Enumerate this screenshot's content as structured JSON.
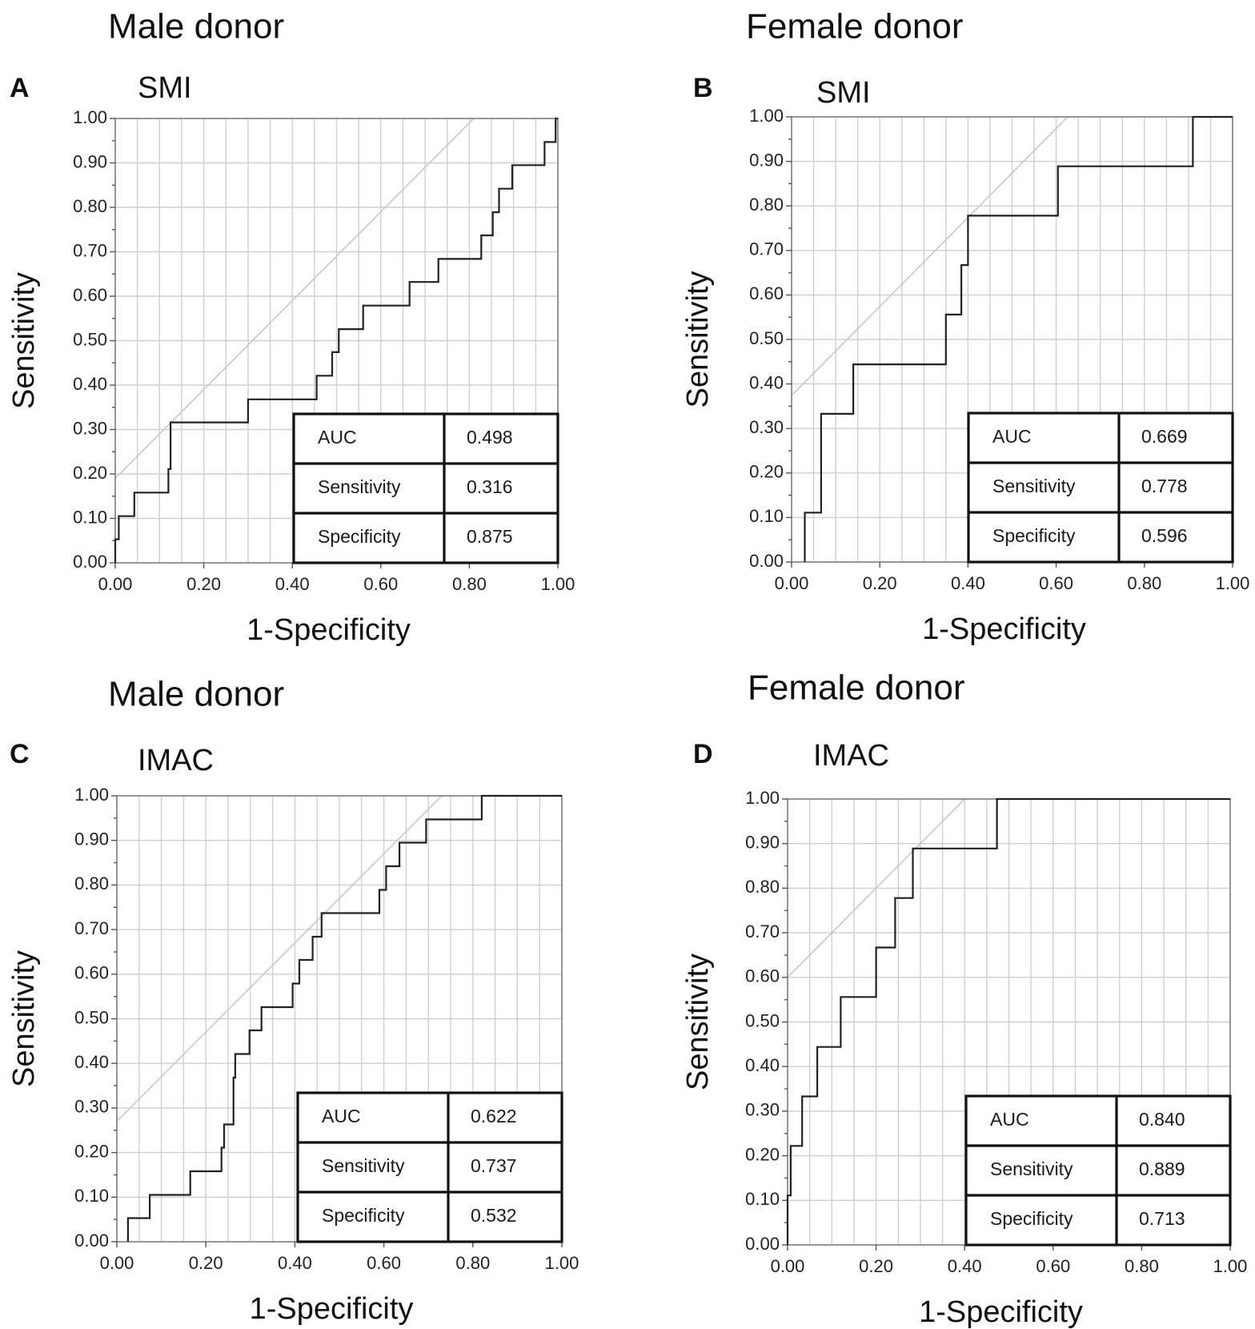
{
  "chart_data": [
    {
      "type": "line",
      "panel": "A",
      "group_title": "Male donor",
      "metric": "SMI",
      "xlabel": "1-Specificity",
      "ylabel": "Sensitivity",
      "xlim": [
        0,
        1
      ],
      "ylim": [
        0,
        1
      ],
      "xticks": [
        "0.00",
        "0.20",
        "0.40",
        "0.60",
        "0.80",
        "1.00"
      ],
      "yticks": [
        "0.00",
        "0.10",
        "0.20",
        "0.30",
        "0.40",
        "0.50",
        "0.60",
        "0.70",
        "0.80",
        "0.90",
        "1.00"
      ],
      "grid": true,
      "reference_line": {
        "intercept": 0.19,
        "slope": 1
      },
      "roc_points": [
        [
          0,
          0
        ],
        [
          0,
          0.053
        ],
        [
          0.008,
          0.053
        ],
        [
          0.008,
          0.105
        ],
        [
          0.043,
          0.105
        ],
        [
          0.043,
          0.158
        ],
        [
          0.12,
          0.158
        ],
        [
          0.12,
          0.211
        ],
        [
          0.125,
          0.211
        ],
        [
          0.125,
          0.316
        ],
        [
          0.3,
          0.316
        ],
        [
          0.3,
          0.368
        ],
        [
          0.455,
          0.368
        ],
        [
          0.455,
          0.421
        ],
        [
          0.49,
          0.421
        ],
        [
          0.49,
          0.474
        ],
        [
          0.505,
          0.474
        ],
        [
          0.505,
          0.526
        ],
        [
          0.56,
          0.526
        ],
        [
          0.56,
          0.579
        ],
        [
          0.665,
          0.579
        ],
        [
          0.665,
          0.632
        ],
        [
          0.73,
          0.632
        ],
        [
          0.73,
          0.684
        ],
        [
          0.827,
          0.684
        ],
        [
          0.827,
          0.737
        ],
        [
          0.853,
          0.737
        ],
        [
          0.853,
          0.789
        ],
        [
          0.867,
          0.789
        ],
        [
          0.867,
          0.842
        ],
        [
          0.897,
          0.842
        ],
        [
          0.897,
          0.895
        ],
        [
          0.97,
          0.895
        ],
        [
          0.97,
          0.947
        ],
        [
          0.995,
          0.947
        ],
        [
          0.995,
          1.0
        ],
        [
          1.0,
          1.0
        ]
      ],
      "table": [
        {
          "label": "AUC",
          "value": "0.498"
        },
        {
          "label": "Sensitivity",
          "value": "0.316"
        },
        {
          "label": "Specificity",
          "value": "0.875"
        }
      ]
    },
    {
      "type": "line",
      "panel": "B",
      "group_title": "Female donor",
      "metric": "SMI",
      "xlabel": "1-Specificity",
      "ylabel": "Sensitivity",
      "xlim": [
        0,
        1
      ],
      "ylim": [
        0,
        1
      ],
      "xticks": [
        "0.00",
        "0.20",
        "0.40",
        "0.60",
        "0.80",
        "1.00"
      ],
      "yticks": [
        "0.00",
        "0.10",
        "0.20",
        "0.30",
        "0.40",
        "0.50",
        "0.60",
        "0.70",
        "0.80",
        "0.90",
        "1.00"
      ],
      "grid": true,
      "reference_line": {
        "intercept": 0.374,
        "slope": 1
      },
      "roc_points": [
        [
          0.03,
          0
        ],
        [
          0.03,
          0.111
        ],
        [
          0.067,
          0.111
        ],
        [
          0.067,
          0.333
        ],
        [
          0.14,
          0.333
        ],
        [
          0.14,
          0.444
        ],
        [
          0.35,
          0.444
        ],
        [
          0.35,
          0.556
        ],
        [
          0.385,
          0.556
        ],
        [
          0.385,
          0.667
        ],
        [
          0.4,
          0.667
        ],
        [
          0.4,
          0.778
        ],
        [
          0.604,
          0.778
        ],
        [
          0.604,
          0.889
        ],
        [
          0.91,
          0.889
        ],
        [
          0.91,
          1.0
        ],
        [
          1.0,
          1.0
        ]
      ],
      "table": [
        {
          "label": "AUC",
          "value": "0.669"
        },
        {
          "label": "Sensitivity",
          "value": "0.778"
        },
        {
          "label": "Specificity",
          "value": "0.596"
        }
      ]
    },
    {
      "type": "line",
      "panel": "C",
      "group_title": "Male donor",
      "metric": "IMAC",
      "xlabel": "1-Specificity",
      "ylabel": "Sensitivity",
      "xlim": [
        0,
        1
      ],
      "ylim": [
        0,
        1
      ],
      "xticks": [
        "0.00",
        "0.20",
        "0.40",
        "0.60",
        "0.80",
        "1.00"
      ],
      "yticks": [
        "0.00",
        "0.10",
        "0.20",
        "0.30",
        "0.40",
        "0.50",
        "0.60",
        "0.70",
        "0.80",
        "0.90",
        "1.00"
      ],
      "grid": true,
      "reference_line": {
        "intercept": 0.27,
        "slope": 1
      },
      "roc_points": [
        [
          0.025,
          0
        ],
        [
          0.025,
          0.053
        ],
        [
          0.074,
          0.053
        ],
        [
          0.074,
          0.105
        ],
        [
          0.165,
          0.105
        ],
        [
          0.165,
          0.158
        ],
        [
          0.235,
          0.158
        ],
        [
          0.235,
          0.211
        ],
        [
          0.241,
          0.211
        ],
        [
          0.241,
          0.263
        ],
        [
          0.262,
          0.263
        ],
        [
          0.262,
          0.368
        ],
        [
          0.266,
          0.368
        ],
        [
          0.266,
          0.421
        ],
        [
          0.298,
          0.421
        ],
        [
          0.298,
          0.474
        ],
        [
          0.325,
          0.474
        ],
        [
          0.325,
          0.526
        ],
        [
          0.395,
          0.526
        ],
        [
          0.395,
          0.579
        ],
        [
          0.41,
          0.579
        ],
        [
          0.41,
          0.632
        ],
        [
          0.44,
          0.632
        ],
        [
          0.44,
          0.684
        ],
        [
          0.46,
          0.684
        ],
        [
          0.46,
          0.737
        ],
        [
          0.59,
          0.737
        ],
        [
          0.59,
          0.789
        ],
        [
          0.605,
          0.789
        ],
        [
          0.605,
          0.842
        ],
        [
          0.635,
          0.842
        ],
        [
          0.635,
          0.895
        ],
        [
          0.695,
          0.895
        ],
        [
          0.695,
          0.947
        ],
        [
          0.82,
          0.947
        ],
        [
          0.82,
          1.0
        ],
        [
          1.0,
          1.0
        ]
      ],
      "table": [
        {
          "label": "AUC",
          "value": "0.622"
        },
        {
          "label": "Sensitivity",
          "value": "0.737"
        },
        {
          "label": "Specificity",
          "value": "0.532"
        }
      ]
    },
    {
      "type": "line",
      "panel": "D",
      "group_title": "Female donor",
      "metric": "IMAC",
      "xlabel": "1-Specificity",
      "ylabel": "Sensitivity",
      "xlim": [
        0,
        1
      ],
      "ylim": [
        0,
        1
      ],
      "xticks": [
        "0.00",
        "0.20",
        "0.40",
        "0.60",
        "0.80",
        "1.00"
      ],
      "yticks": [
        "0.00",
        "0.10",
        "0.20",
        "0.30",
        "0.40",
        "0.50",
        "0.60",
        "0.70",
        "0.80",
        "0.90",
        "1.00"
      ],
      "grid": true,
      "reference_line": {
        "intercept": 0.6,
        "slope": 1
      },
      "roc_points": [
        [
          0,
          0
        ],
        [
          0,
          0.111
        ],
        [
          0.007,
          0.111
        ],
        [
          0.007,
          0.222
        ],
        [
          0.033,
          0.222
        ],
        [
          0.033,
          0.333
        ],
        [
          0.067,
          0.333
        ],
        [
          0.067,
          0.444
        ],
        [
          0.12,
          0.444
        ],
        [
          0.12,
          0.556
        ],
        [
          0.2,
          0.556
        ],
        [
          0.2,
          0.667
        ],
        [
          0.243,
          0.667
        ],
        [
          0.243,
          0.778
        ],
        [
          0.283,
          0.778
        ],
        [
          0.283,
          0.889
        ],
        [
          0.473,
          0.889
        ],
        [
          0.473,
          1.0
        ],
        [
          1.0,
          1.0
        ]
      ],
      "table": [
        {
          "label": "AUC",
          "value": "0.840"
        },
        {
          "label": "Sensitivity",
          "value": "0.889"
        },
        {
          "label": "Specificity",
          "value": "0.713"
        }
      ]
    }
  ]
}
